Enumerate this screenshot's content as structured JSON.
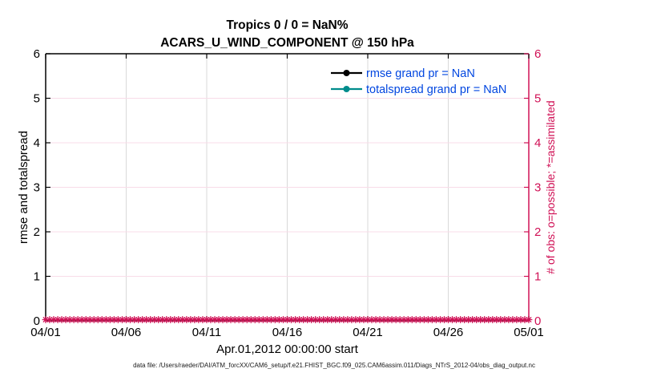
{
  "title": {
    "line1": "Tropics 0 / 0 = NaN%",
    "line2": "ACARS_U_WIND_COMPONENT @ 150 hPa"
  },
  "axes": {
    "left": {
      "label": "rmse and totalspread",
      "ticks": [
        "0",
        "1",
        "2",
        "3",
        "4",
        "5",
        "6"
      ]
    },
    "right": {
      "label": "# of obs: o=possible; *=assimilated",
      "ticks": [
        "0",
        "1",
        "2",
        "3",
        "4",
        "5",
        "6"
      ]
    },
    "x": {
      "label": "Apr.01,2012 00:00:00 start",
      "ticks": [
        "04/01",
        "04/06",
        "04/11",
        "04/16",
        "04/21",
        "04/26",
        "05/01"
      ]
    }
  },
  "legend": [
    {
      "label": "rmse grand pr = NaN",
      "color": "#000000"
    },
    {
      "label": "totalspread grand pr = NaN",
      "color": "#008c8c"
    }
  ],
  "footer": "data file: /Users/raeder/DAI/ATM_forcXX/CAM6_setup/f.e21.FHIST_BGC.f09_025.CAM6assim.011/Diags_NTrS_2012-04/obs_diag_output.nc",
  "colors": {
    "axis": "#000000",
    "crimson": "#d01055",
    "teal": "#008c8c",
    "legendText": "#0046e0",
    "gridGray": "#d9d9d9",
    "gridPink": "#f8dce8",
    "footer": "#1a1a1a",
    "background": "#ffffff"
  },
  "chart_data": {
    "type": "line",
    "suptitle": "Tropics 0 / 0 = NaN%",
    "title": "ACARS_U_WIND_COMPONENT @ 150 hPa",
    "xlabel": "Apr.01,2012 00:00:00 start",
    "ylabel_left": "rmse and totalspread",
    "ylabel_right": "# of obs: o=possible; *=assimilated",
    "x_ticks": [
      "04/01",
      "04/06",
      "04/11",
      "04/16",
      "04/21",
      "04/26",
      "05/01"
    ],
    "ylim_left": [
      0,
      6
    ],
    "ylim_right": [
      0,
      6
    ],
    "y_ticks": [
      0,
      1,
      2,
      3,
      4,
      5,
      6
    ],
    "grid": true,
    "legend_position": "upper-right-inside, no box",
    "series": [
      {
        "name": "rmse grand pr = NaN",
        "type": "line",
        "axis": "left",
        "color": "#000000",
        "marker": "circle",
        "values": [],
        "note": "all values NaN - no curve drawn"
      },
      {
        "name": "totalspread grand pr = NaN",
        "type": "line",
        "axis": "left",
        "color": "#008c8c",
        "marker": "circle",
        "values": [],
        "note": "all values NaN - no curve drawn"
      },
      {
        "name": "# of obs (possible/assimilated)",
        "type": "scatter",
        "axis": "right",
        "color": "#d01055",
        "marker": "*",
        "y_value": 0,
        "n_points": 121,
        "x_span": [
          "04/01",
          "05/01"
        ],
        "note": "dense asterisk band at y=0 across entire x range"
      }
    ]
  }
}
